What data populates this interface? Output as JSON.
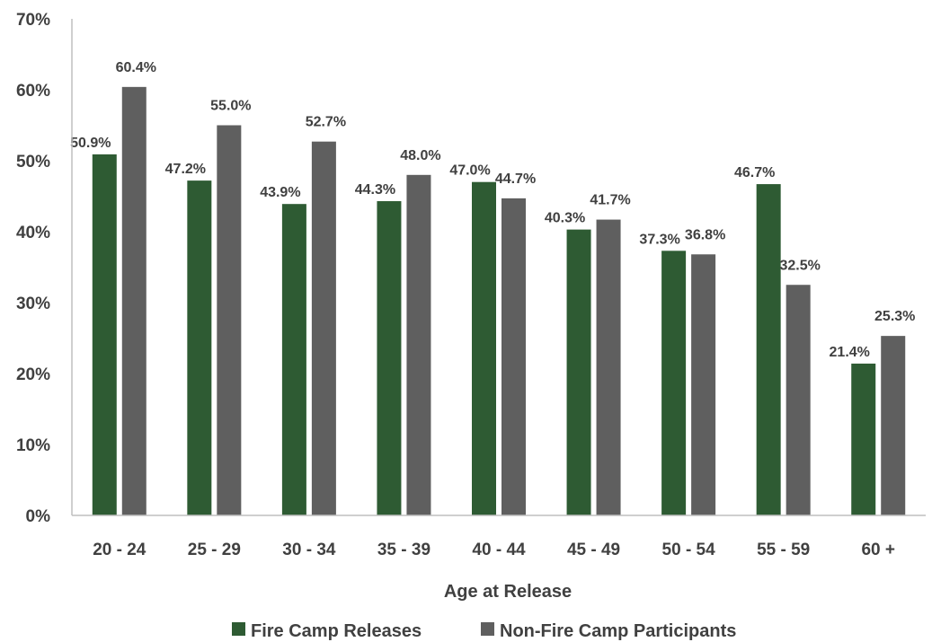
{
  "chart_data": {
    "type": "bar",
    "xlabel": "Age at Release",
    "ylabel": "",
    "ylim": [
      0,
      70
    ],
    "y_tick_step": 10,
    "y_tick_suffix": "%",
    "grid": false,
    "legend_position": "bottom",
    "categories": [
      "20 - 24",
      "25 - 29",
      "30 - 34",
      "35 - 39",
      "40 - 44",
      "45 - 49",
      "50 - 54",
      "55 - 59",
      "60 +"
    ],
    "series": [
      {
        "name": "Fire Camp Releases",
        "color": "#2e5b33",
        "values": [
          50.9,
          47.2,
          43.9,
          44.3,
          47.0,
          40.3,
          37.3,
          46.7,
          21.4
        ],
        "labels": [
          "50.9%",
          "47.2%",
          "43.9%",
          "44.3%",
          "47.0%",
          "40.3%",
          "37.3%",
          "46.7%",
          "21.4%"
        ]
      },
      {
        "name": "Non-Fire Camp Participants",
        "color": "#5f5f5f",
        "values": [
          60.4,
          55.0,
          52.7,
          48.0,
          44.7,
          41.7,
          36.8,
          32.5,
          25.3
        ],
        "labels": [
          "60.4%",
          "55.0%",
          "52.7%",
          "48.0%",
          "44.7%",
          "41.7%",
          "36.8%",
          "32.5%",
          "25.3%"
        ]
      }
    ]
  }
}
